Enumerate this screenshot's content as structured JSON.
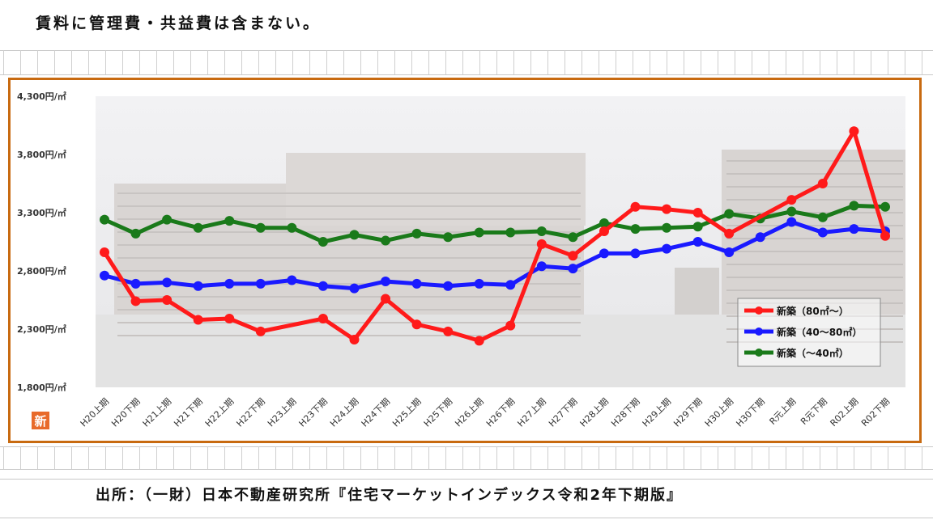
{
  "note": "賃料に管理費・共益費は含まない。",
  "source": "出所：（一財）日本不動産研究所『住宅マーケットインデックス令和2年下期版』",
  "badge": "新",
  "colors": {
    "frame": "#c86a10",
    "series": [
      "#ff1a1a",
      "#1a1aff",
      "#1a7a1a"
    ]
  },
  "chart_data": {
    "type": "line",
    "title": "",
    "xlabel": "",
    "ylabel": "",
    "ylim": [
      1800,
      4300
    ],
    "yticks": [
      "1,800円/㎡",
      "2,300円/㎡",
      "2,800円/㎡",
      "3,300円/㎡",
      "3,800円/㎡",
      "4,300円/㎡"
    ],
    "ytick_values": [
      1800,
      2300,
      2800,
      3300,
      3800,
      4300
    ],
    "categories": [
      "H20上期",
      "H20下期",
      "H21上期",
      "H21下期",
      "H22上期",
      "H22下期",
      "H23上期",
      "H23下期",
      "H24上期",
      "H24下期",
      "H25上期",
      "H25下期",
      "H26上期",
      "H26下期",
      "H27上期",
      "H27下期",
      "H28上期",
      "H28下期",
      "H29上期",
      "H29下期",
      "H30上期",
      "H30下期",
      "R元上期",
      "R元下期",
      "R02上期",
      "R02下期"
    ],
    "legend_position": "bottom-right",
    "series": [
      {
        "name": "新築（80㎡～）",
        "color": "#ff1a1a",
        "values": [
          2960,
          2540,
          2550,
          2380,
          2390,
          2280,
          null,
          2390,
          2210,
          2560,
          2340,
          2280,
          2200,
          2330,
          3030,
          2930,
          3140,
          3350,
          3330,
          3300,
          3120,
          null,
          3410,
          3550,
          4000,
          3100
        ]
      },
      {
        "name": "新築（40～80㎡）",
        "color": "#1a1aff",
        "values": [
          2760,
          2690,
          2700,
          2670,
          2690,
          2690,
          2720,
          2670,
          2650,
          2710,
          2690,
          2670,
          2690,
          2680,
          2840,
          2820,
          2950,
          2950,
          2990,
          3050,
          2960,
          3090,
          3220,
          3130,
          3160,
          3140
        ]
      },
      {
        "name": "新築（～40㎡）",
        "color": "#1a7a1a",
        "values": [
          3240,
          3120,
          3240,
          3170,
          3230,
          3170,
          3170,
          3050,
          3110,
          3060,
          3120,
          3090,
          3130,
          3130,
          3140,
          3090,
          3210,
          3160,
          3170,
          3180,
          3290,
          3250,
          3310,
          3260,
          3360,
          3350
        ]
      }
    ]
  }
}
